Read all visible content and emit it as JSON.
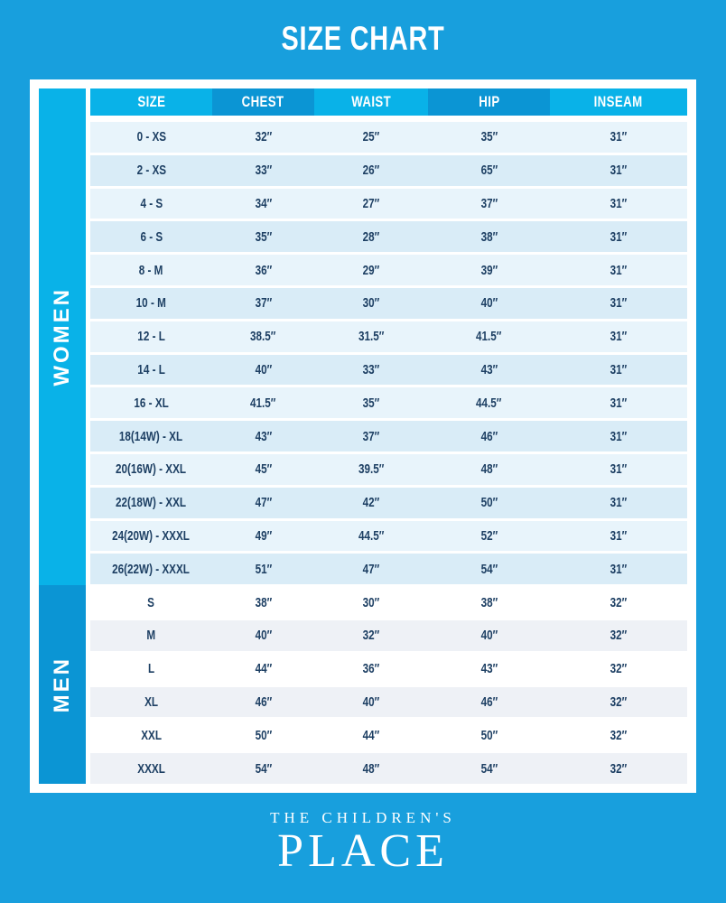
{
  "page": {
    "title": "SIZE CHART"
  },
  "footer": {
    "brand_line1": "THE CHILDREN'S",
    "brand_line2": "PLACE"
  },
  "colors": {
    "background": "#189fdd",
    "accent_light": "#09b2e8",
    "accent_dark": "#0b95d4",
    "women_row_odd": "#e8f4fb",
    "women_row_even": "#d9ecf7",
    "men_row_odd": "#ffffff",
    "men_row_even": "#eef1f6",
    "cell_text": "#1d3f63",
    "header_text": "#ffffff"
  },
  "chart_data": {
    "type": "table",
    "title": "SIZE CHART",
    "columns": [
      "SIZE",
      "CHEST",
      "WAIST",
      "HIP",
      "INSEAM"
    ],
    "sections": [
      {
        "label": "WOMEN",
        "rows": [
          [
            "0 - XS",
            "32″",
            "25″",
            "35″",
            "31″"
          ],
          [
            "2 - XS",
            "33″",
            "26″",
            "65″",
            "31″"
          ],
          [
            "4 - S",
            "34″",
            "27″",
            "37″",
            "31″"
          ],
          [
            "6 - S",
            "35″",
            "28″",
            "38″",
            "31″"
          ],
          [
            "8 - M",
            "36″",
            "29″",
            "39″",
            "31″"
          ],
          [
            "10 - M",
            "37″",
            "30″",
            "40″",
            "31″"
          ],
          [
            "12 - L",
            "38.5″",
            "31.5″",
            "41.5″",
            "31″"
          ],
          [
            "14 - L",
            "40″",
            "33″",
            "43″",
            "31″"
          ],
          [
            "16 - XL",
            "41.5″",
            "35″",
            "44.5″",
            "31″"
          ],
          [
            "18(14W) - XL",
            "43″",
            "37″",
            "46″",
            "31″"
          ],
          [
            "20(16W) - XXL",
            "45″",
            "39.5″",
            "48″",
            "31″"
          ],
          [
            "22(18W) - XXL",
            "47″",
            "42″",
            "50″",
            "31″"
          ],
          [
            "24(20W) - XXXL",
            "49″",
            "44.5″",
            "52″",
            "31″"
          ],
          [
            "26(22W) - XXXL",
            "51″",
            "47″",
            "54″",
            "31″"
          ]
        ]
      },
      {
        "label": "MEN",
        "rows": [
          [
            "S",
            "38″",
            "30″",
            "38″",
            "32″"
          ],
          [
            "M",
            "40″",
            "32″",
            "40″",
            "32″"
          ],
          [
            "L",
            "44″",
            "36″",
            "43″",
            "32″"
          ],
          [
            "XL",
            "46″",
            "40″",
            "46″",
            "32″"
          ],
          [
            "XXL",
            "50″",
            "44″",
            "50″",
            "32″"
          ],
          [
            "XXXL",
            "54″",
            "48″",
            "54″",
            "32″"
          ]
        ]
      }
    ]
  }
}
